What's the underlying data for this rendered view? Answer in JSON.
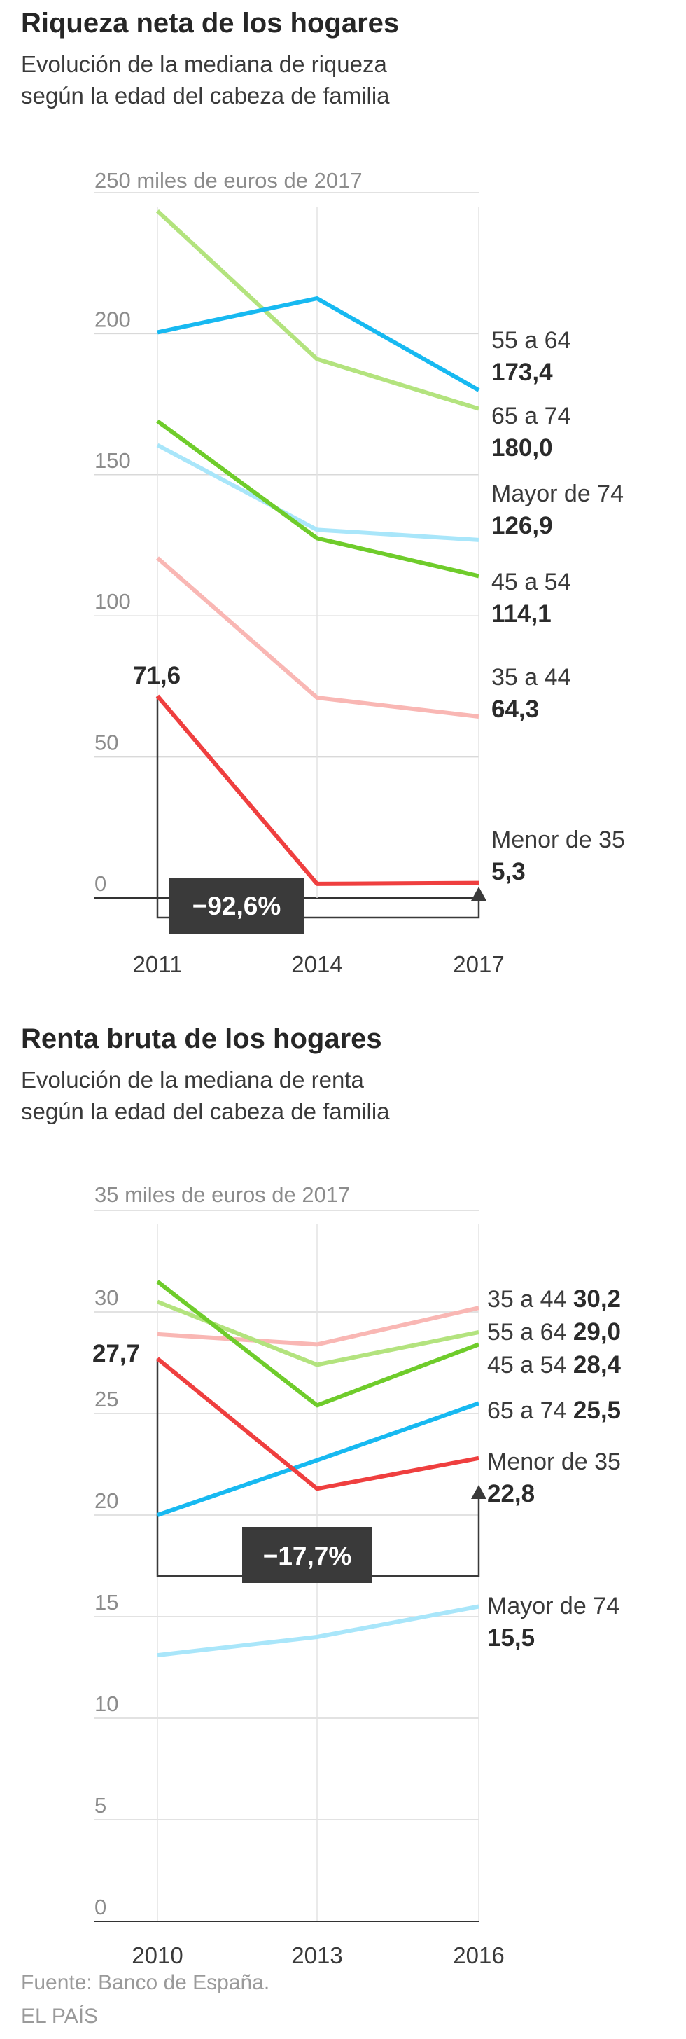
{
  "footer": {
    "source": "Fuente: Banco de España.",
    "brand": "EL PAÍS"
  },
  "chart_data": [
    {
      "type": "line",
      "title": "Riqueza neta de los hogares",
      "subtitle_lines": [
        "Evolución de la mediana de riqueza",
        "según la edad del cabeza de familia"
      ],
      "unit_label": "250 miles de euros de 2017",
      "x": [
        "2011",
        "2014",
        "2017"
      ],
      "ylim": [
        0,
        250
      ],
      "yticks": [
        0,
        50,
        100,
        150,
        200
      ],
      "series": [
        {
          "name": "55 a 64",
          "color": "#b3e37e",
          "values": [
            243.5,
            191.0,
            173.4
          ],
          "end_label": "173,4"
        },
        {
          "name": "65 a 74",
          "color": "#17b9f1",
          "values": [
            200.5,
            212.5,
            180.0
          ],
          "end_label": "180,0"
        },
        {
          "name": "Mayor de 74",
          "color": "#a9e6fa",
          "values": [
            160.5,
            130.5,
            126.9
          ],
          "end_label": "126,9"
        },
        {
          "name": "45 a 54",
          "color": "#6fcc2b",
          "values": [
            169.0,
            127.5,
            114.1
          ],
          "end_label": "114,1"
        },
        {
          "name": "35 a 44",
          "color": "#f9b7b4",
          "values": [
            120.5,
            71.0,
            64.3
          ],
          "end_label": "64,3"
        },
        {
          "name": "Menor de 35",
          "color": "#ef3f3f",
          "values": [
            71.6,
            5.0,
            5.3
          ],
          "end_label": "5,3"
        }
      ],
      "highlight": {
        "series": "Menor de 35",
        "start_label": "71,6",
        "change_label": "−92,6%"
      }
    },
    {
      "type": "line",
      "title": "Renta bruta de los hogares",
      "subtitle_lines": [
        "Evolución de la mediana de renta",
        "según la edad del cabeza de familia"
      ],
      "unit_label": "35 miles de euros de 2017",
      "x": [
        "2010",
        "2013",
        "2016"
      ],
      "ylim": [
        0,
        35
      ],
      "yticks": [
        0,
        5,
        10,
        15,
        20,
        25,
        30
      ],
      "series": [
        {
          "name": "35 a 44",
          "color": "#f9b7b4",
          "values": [
            28.9,
            28.4,
            30.2
          ],
          "end_label": "30,2"
        },
        {
          "name": "55 a 64",
          "color": "#b3e37e",
          "values": [
            30.5,
            27.4,
            29.0
          ],
          "end_label": "29,0"
        },
        {
          "name": "45 a 54",
          "color": "#6fcc2b",
          "values": [
            31.5,
            25.4,
            28.4
          ],
          "end_label": "28,4"
        },
        {
          "name": "65 a 74",
          "color": "#17b9f1",
          "values": [
            20.0,
            22.7,
            25.5
          ],
          "end_label": "25,5"
        },
        {
          "name": "Menor de 35",
          "color": "#ef3f3f",
          "values": [
            27.7,
            21.3,
            22.8
          ],
          "end_label": "22,8"
        },
        {
          "name": "Mayor de 74",
          "color": "#a9e6fa",
          "values": [
            13.1,
            14.0,
            15.5
          ],
          "end_label": "15,5"
        }
      ],
      "highlight": {
        "series": "Menor de 35",
        "start_label": "27,7",
        "change_label": "−17,7%"
      }
    }
  ]
}
